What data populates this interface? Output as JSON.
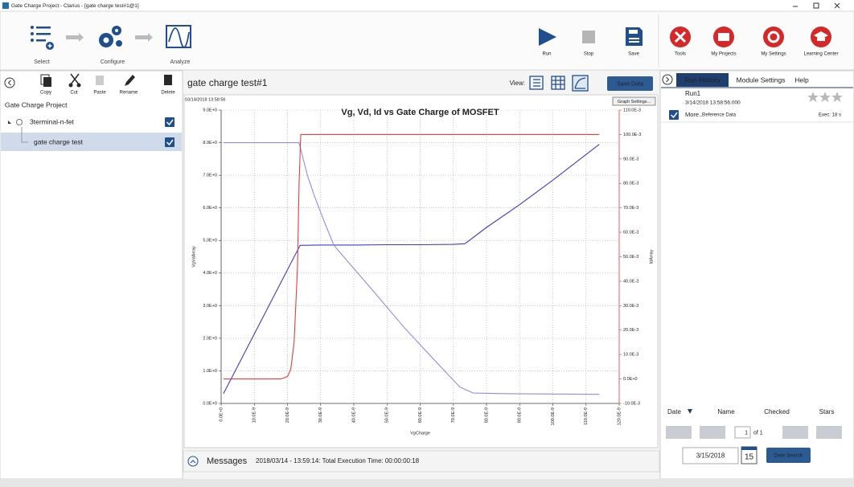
{
  "window": {
    "title": "Gate Charge Project - Clarius - [gate charge test#1@1]"
  },
  "toolbar": {
    "steps": [
      "Select",
      "Configure",
      "Analyze"
    ],
    "actions": [
      "Run",
      "Stop",
      "Save"
    ],
    "apps": [
      "Tools",
      "My Projects",
      "My Settings",
      "Learning Center"
    ]
  },
  "left_panel": {
    "tools": [
      "Copy",
      "Cut",
      "Paste",
      "Rename",
      "Delete"
    ],
    "project": "Gate Charge Project",
    "tree": [
      "3terminal-n-fet",
      "gate charge test"
    ]
  },
  "center": {
    "test_name": "gate charge test#1",
    "view_label": "View:",
    "save_button": "Save Data",
    "timestamp": "03/14/2018 13:58:56",
    "graph_settings": "Graph Settings...",
    "messages_label": "Messages",
    "message": "2018/03/14 - 13:59:14: Total Execution Time: 00:00:00:18"
  },
  "right_panel": {
    "tabs": [
      "Run History",
      "Module Settings",
      "Help"
    ],
    "run": {
      "name": "Run1",
      "date": "3/14/2018 13:58:56.000",
      "more": "More...",
      "reference": "Reference Data",
      "exec": "Exec: 18 s"
    },
    "columns": [
      "Date",
      "Name",
      "Checked",
      "Stars"
    ],
    "page": 1,
    "of": "of 1",
    "date_field": "3/15/2018",
    "calendar_day": 15,
    "search": "Date Search"
  },
  "chart_data": {
    "type": "line",
    "title": "Vg, Vd, Id vs Gate Charge of MOSFET",
    "xlabel": "VgCharge",
    "ylabel": "VgVdArray",
    "y2label": "IdArray",
    "grid": true,
    "xlim": [
      0,
      1.2e-07
    ],
    "xticks": [
      {
        "value": 0,
        "label": "0.0E+0"
      },
      {
        "value": 1e-08,
        "label": "10.0E-9"
      },
      {
        "value": 2e-08,
        "label": "20.0E-9"
      },
      {
        "value": 3e-08,
        "label": "30.0E-9"
      },
      {
        "value": 4e-08,
        "label": "40.0E-9"
      },
      {
        "value": 5e-08,
        "label": "50.0E-9"
      },
      {
        "value": 6e-08,
        "label": "60.0E-9"
      },
      {
        "value": 7e-08,
        "label": "70.0E-9"
      },
      {
        "value": 8e-08,
        "label": "80.0E-9"
      },
      {
        "value": 9e-08,
        "label": "90.0E-9"
      },
      {
        "value": 1e-07,
        "label": "100.0E-9"
      },
      {
        "value": 1.1e-07,
        "label": "110.0E-9"
      },
      {
        "value": 1.2e-07,
        "label": "120.0E-9"
      }
    ],
    "ylim": [
      0,
      9
    ],
    "yticks": [
      {
        "value": 0,
        "label": "0.0E+0"
      },
      {
        "value": 1,
        "label": "1.0E+0"
      },
      {
        "value": 2,
        "label": "2.0E+0"
      },
      {
        "value": 3,
        "label": "3.0E+0"
      },
      {
        "value": 4,
        "label": "4.0E+0"
      },
      {
        "value": 5,
        "label": "5.0E+0"
      },
      {
        "value": 6,
        "label": "6.0E+0"
      },
      {
        "value": 7,
        "label": "7.0E+0"
      },
      {
        "value": 8,
        "label": "8.0E+0"
      },
      {
        "value": 9,
        "label": "9.0E+0"
      }
    ],
    "y2lim": [
      -0.01,
      0.11
    ],
    "y2ticks": [
      {
        "value": -0.01,
        "label": "-10.0E-3"
      },
      {
        "value": 0,
        "label": "0.0E+0"
      },
      {
        "value": 0.01,
        "label": "10.0E-3"
      },
      {
        "value": 0.02,
        "label": "20.0E-3"
      },
      {
        "value": 0.03,
        "label": "30.0E-3"
      },
      {
        "value": 0.04,
        "label": "40.0E-3"
      },
      {
        "value": 0.05,
        "label": "50.0E-3"
      },
      {
        "value": 0.06,
        "label": "60.0E-3"
      },
      {
        "value": 0.07,
        "label": "70.0E-3"
      },
      {
        "value": 0.08,
        "label": "80.0E-3"
      },
      {
        "value": 0.09,
        "label": "90.0E-3"
      },
      {
        "value": 0.1,
        "label": "100.0E-3"
      },
      {
        "value": 0.11,
        "label": "110.0E-3"
      }
    ],
    "series": [
      {
        "color": "#3b3bd4",
        "x": [
          7e-10,
          2.38e-08,
          3e-08,
          4e-08,
          5e-08,
          6e-08,
          7e-08,
          7.35e-08,
          8e-08,
          9e-08,
          1e-07,
          1.14e-07
        ],
        "values": [
          0.3,
          4.85,
          4.86,
          4.86,
          4.87,
          4.87,
          4.88,
          4.9,
          5.4,
          6.1,
          6.85,
          7.95
        ]
      },
      {
        "color": "#8c8cf0",
        "x": [
          7e-10,
          2.35e-08,
          2.45e-08,
          2.6e-08,
          2.8e-08,
          3.1e-08,
          3.4e-08,
          4.5e-08,
          5.5e-08,
          6.5e-08,
          7.2e-08,
          7.6e-08,
          8.5e-08,
          1.14e-07
        ],
        "values": [
          8.0,
          8.0,
          7.6,
          7.0,
          6.4,
          5.6,
          4.85,
          3.55,
          2.35,
          1.25,
          0.5,
          0.32,
          0.3,
          0.28
        ]
      },
      {
        "color": "#ee3b3b",
        "axis": "y2",
        "x": [
          7e-10,
          1.8e-08,
          2e-08,
          2.1e-08,
          2.2e-08,
          2.3e-08,
          2.35e-08,
          2.4e-08,
          1.14e-07
        ],
        "values": [
          0,
          0,
          0.001,
          0.004,
          0.015,
          0.045,
          0.08,
          0.1,
          0.1
        ]
      }
    ]
  }
}
